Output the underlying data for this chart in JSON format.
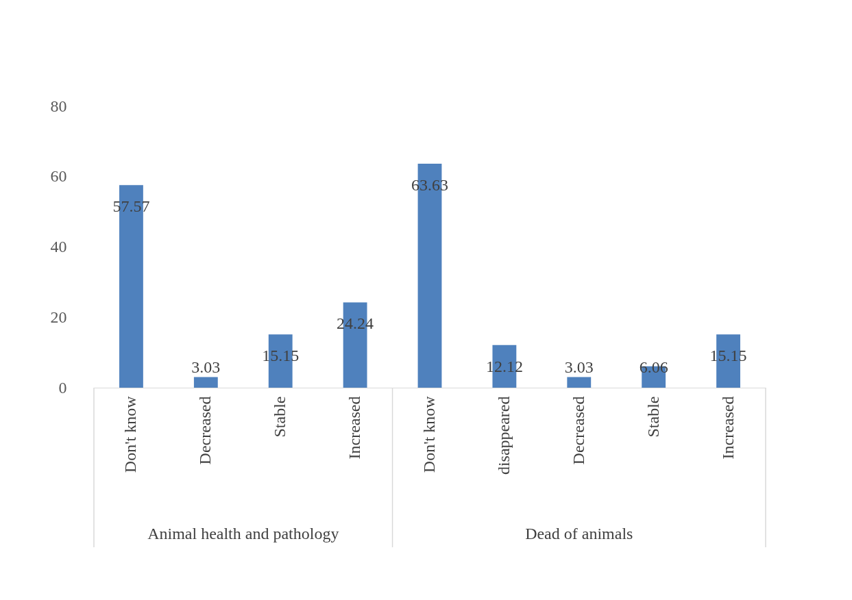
{
  "chart_data": {
    "type": "bar",
    "categories": [
      "Don't know",
      "Decreased",
      "Stable",
      "Increased",
      "Don't know",
      "disappeared",
      "Decreased",
      "Stable",
      "Increased"
    ],
    "series": [
      {
        "color": "#4f81bd",
        "values": [
          57.57,
          3.03,
          15.15,
          24.24,
          63.63,
          12.12,
          3.03,
          6.06,
          15.15
        ]
      }
    ],
    "ylim": [
      0,
      80
    ],
    "yticks": [
      0,
      20,
      40,
      60,
      80
    ],
    "data_labels": true,
    "grid": false,
    "annotations": [
      "Animal health and pathology",
      "Dead of animals"
    ]
  }
}
